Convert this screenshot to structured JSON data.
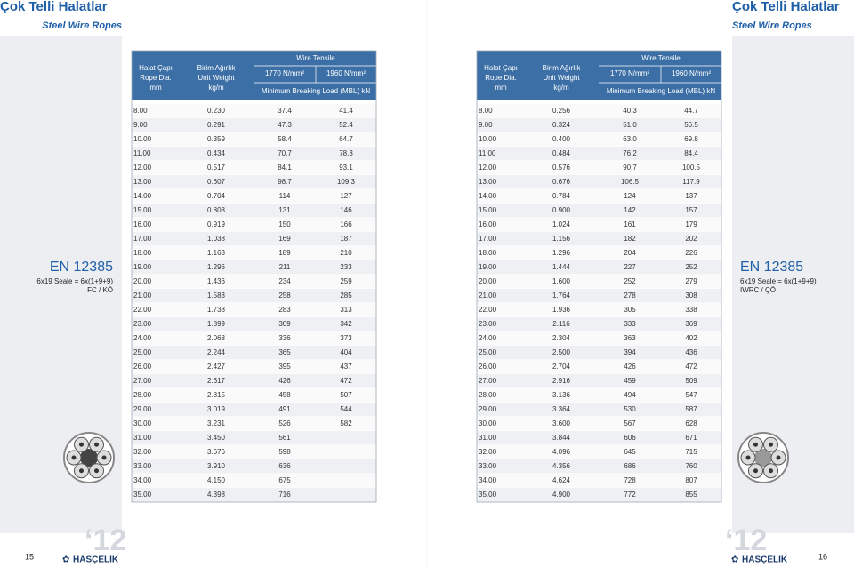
{
  "pages": [
    {
      "title": "Çok Telli Halatlar",
      "subtitle": "Steel Wire Ropes",
      "page_number": "15",
      "brand": "HASÇELİK",
      "year": "‘12",
      "standard": {
        "name": "EN 12385",
        "construction": "6x19 Seale = 6x(1+9+9)",
        "core": "FC / KÖ"
      },
      "table": {
        "header": {
          "diameter": [
            "Halat Çapı",
            "Rope Dia.",
            "mm"
          ],
          "weight": [
            "Birim Ağırlık",
            "Unit Weight",
            "kg/m"
          ],
          "tensile": "Wire Tensile",
          "grades": [
            "1770 N/mm²",
            "1960 N/mm²"
          ],
          "load": "Minimum Breaking Load (MBL) kN"
        },
        "rows": [
          [
            "8.00",
            "0.230",
            "37.4",
            "41.4"
          ],
          [
            "9.00",
            "0.291",
            "47.3",
            "52.4"
          ],
          [
            "10.00",
            "0.359",
            "58.4",
            "64.7"
          ],
          [
            "11.00",
            "0.434",
            "70.7",
            "78.3"
          ],
          [
            "12.00",
            "0.517",
            "84.1",
            "93.1"
          ],
          [
            "13.00",
            "0.607",
            "98.7",
            "109.3"
          ],
          [
            "14.00",
            "0.704",
            "114",
            "127"
          ],
          [
            "15.00",
            "0.808",
            "131",
            "146"
          ],
          [
            "16.00",
            "0.919",
            "150",
            "166"
          ],
          [
            "17.00",
            "1.038",
            "169",
            "187"
          ],
          [
            "18.00",
            "1.163",
            "189",
            "210"
          ],
          [
            "19.00",
            "1.296",
            "211",
            "233"
          ],
          [
            "20.00",
            "1.436",
            "234",
            "259"
          ],
          [
            "21.00",
            "1.583",
            "258",
            "285"
          ],
          [
            "22.00",
            "1.738",
            "283",
            "313"
          ],
          [
            "23.00",
            "1.899",
            "309",
            "342"
          ],
          [
            "24.00",
            "2.068",
            "336",
            "373"
          ],
          [
            "25.00",
            "2.244",
            "365",
            "404"
          ],
          [
            "26.00",
            "2.427",
            "395",
            "437"
          ],
          [
            "27.00",
            "2.617",
            "426",
            "472"
          ],
          [
            "28.00",
            "2.815",
            "458",
            "507"
          ],
          [
            "29.00",
            "3.019",
            "491",
            "544"
          ],
          [
            "30.00",
            "3.231",
            "526",
            "582"
          ],
          [
            "31.00",
            "3.450",
            "561"
          ],
          [
            "32.00",
            "3.676",
            "598"
          ],
          [
            "33.00",
            "3.910",
            "636"
          ],
          [
            "34.00",
            "4.150",
            "675"
          ],
          [
            "35.00",
            "4.398",
            "716"
          ]
        ]
      }
    },
    {
      "title": "Çok Telli Halatlar",
      "subtitle": "Steel Wire Ropes",
      "page_number": "16",
      "brand": "HASÇELİK",
      "year": "‘12",
      "standard": {
        "name": "EN 12385",
        "construction": "6x19 Seale = 6x(1+9+9)",
        "core": "IWRC / ÇÖ"
      },
      "table": {
        "header": {
          "diameter": [
            "Halat Çapı",
            "Rope Dia.",
            "mm"
          ],
          "weight": [
            "Birim Ağırlık",
            "Unit Weight",
            "kg/m"
          ],
          "tensile": "Wire Tensile",
          "grades": [
            "1770 N/mm²",
            "1960 N/mm²"
          ],
          "load": "Minimum Breaking Load (MBL) kN"
        },
        "rows": [
          [
            "8.00",
            "0.256",
            "40.3",
            "44.7"
          ],
          [
            "9.00",
            "0.324",
            "51.0",
            "56.5"
          ],
          [
            "10.00",
            "0.400",
            "63.0",
            "69.8"
          ],
          [
            "11.00",
            "0.484",
            "76.2",
            "84.4"
          ],
          [
            "12.00",
            "0.576",
            "90.7",
            "100.5"
          ],
          [
            "13.00",
            "0.676",
            "106.5",
            "117.9"
          ],
          [
            "14.00",
            "0.784",
            "124",
            "137"
          ],
          [
            "15.00",
            "0.900",
            "142",
            "157"
          ],
          [
            "16.00",
            "1.024",
            "161",
            "179"
          ],
          [
            "17.00",
            "1.156",
            "182",
            "202"
          ],
          [
            "18.00",
            "1.296",
            "204",
            "226"
          ],
          [
            "19.00",
            "1.444",
            "227",
            "252"
          ],
          [
            "20.00",
            "1.600",
            "252",
            "279"
          ],
          [
            "21.00",
            "1.764",
            "278",
            "308"
          ],
          [
            "22.00",
            "1.936",
            "305",
            "338"
          ],
          [
            "23.00",
            "2.116",
            "333",
            "369"
          ],
          [
            "24.00",
            "2.304",
            "363",
            "402"
          ],
          [
            "25.00",
            "2.500",
            "394",
            "436"
          ],
          [
            "26.00",
            "2.704",
            "426",
            "472"
          ],
          [
            "27.00",
            "2.916",
            "459",
            "509"
          ],
          [
            "28.00",
            "3.136",
            "494",
            "547"
          ],
          [
            "29.00",
            "3.364",
            "530",
            "587"
          ],
          [
            "30.00",
            "3.600",
            "567",
            "628"
          ],
          [
            "31.00",
            "3.844",
            "606",
            "671"
          ],
          [
            "32.00",
            "4.096",
            "645",
            "715"
          ],
          [
            "33.00",
            "4.356",
            "686",
            "760"
          ],
          [
            "34.00",
            "4.624",
            "728",
            "807"
          ],
          [
            "35.00",
            "4.900",
            "772",
            "855"
          ]
        ]
      }
    }
  ]
}
